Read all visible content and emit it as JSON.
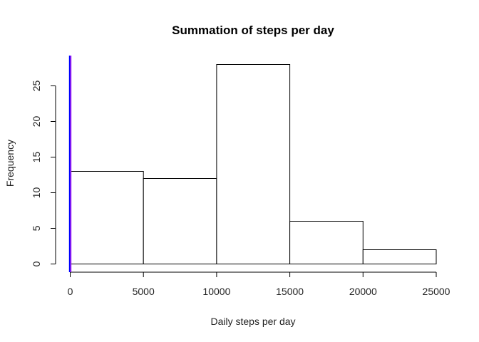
{
  "chart_data": {
    "type": "bar",
    "title": "Summation of steps per day",
    "xlabel": "Daily steps per day",
    "ylabel": "Frequency",
    "bins": [
      {
        "from": 0,
        "to": 5000,
        "count": 13
      },
      {
        "from": 5000,
        "to": 10000,
        "count": 12
      },
      {
        "from": 10000,
        "to": 15000,
        "count": 28
      },
      {
        "from": 15000,
        "to": 20000,
        "count": 6
      },
      {
        "from": 20000,
        "to": 25000,
        "count": 2
      }
    ],
    "xlim": [
      0,
      25000
    ],
    "ylim": [
      0,
      29
    ],
    "x_ticks": [
      0,
      5000,
      10000,
      15000,
      20000,
      25000
    ],
    "y_ticks": [
      0,
      5,
      10,
      15,
      20,
      25
    ],
    "vertical_lines": [
      {
        "x": 0,
        "color": "#0000ff"
      },
      {
        "x": 0,
        "color": "#a020f0"
      }
    ],
    "bar_fill": "#ffffff",
    "bar_stroke": "#000000",
    "grid": false,
    "legend": "none"
  }
}
